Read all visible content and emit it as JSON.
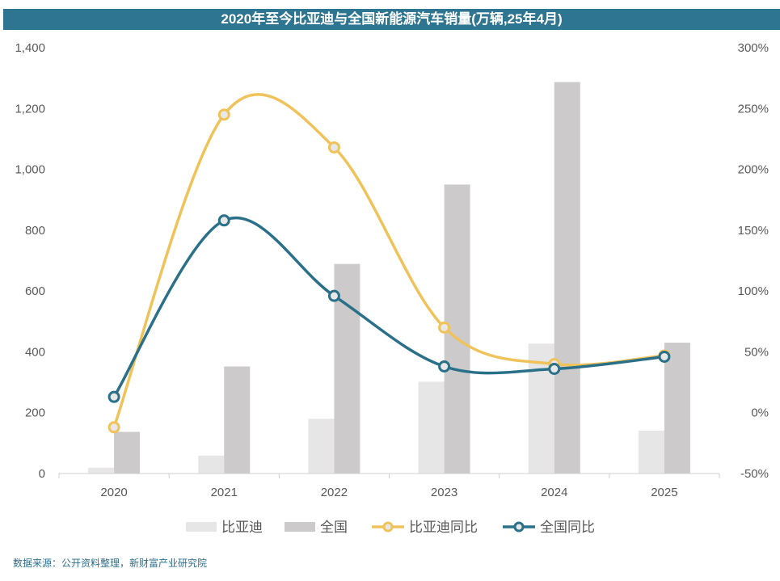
{
  "chart_data": {
    "type": "bar+line",
    "title": "2020年至今比亚迪与全国新能源汽车销量(万辆,25年4月)",
    "categories": [
      "2020",
      "2021",
      "2022",
      "2023",
      "2024",
      "2025"
    ],
    "series": [
      {
        "name": "比亚迪",
        "type": "bar",
        "axis": "left",
        "color": "#e6e6e6",
        "values": [
          19,
          59,
          180,
          302,
          427,
          141
        ]
      },
      {
        "name": "全国",
        "type": "bar",
        "axis": "left",
        "color": "#cccacb",
        "values": [
          137,
          352,
          689,
          950,
          1287,
          430
        ]
      },
      {
        "name": "比亚迪同比",
        "type": "line",
        "axis": "right",
        "color": "#f0c35a",
        "values": [
          -12,
          245,
          218,
          70,
          40,
          47
        ]
      },
      {
        "name": "全国同比",
        "type": "line",
        "axis": "right",
        "color": "#2a7088",
        "values": [
          13,
          158,
          96,
          38,
          36,
          46
        ]
      }
    ],
    "y_left": {
      "min": 0,
      "max": 1400,
      "step": 200,
      "tick_labels": [
        "0",
        "200",
        "400",
        "600",
        "800",
        "1,000",
        "1,200",
        "1,400"
      ]
    },
    "y_right": {
      "min": -50,
      "max": 300,
      "step": 50,
      "tick_labels": [
        "-50%",
        "0%",
        "50%",
        "100%",
        "150%",
        "200%",
        "250%",
        "300%"
      ]
    },
    "grid": false,
    "legend_position": "bottom"
  },
  "source": "数据来源：公开资料整理，新财富产业研究院"
}
